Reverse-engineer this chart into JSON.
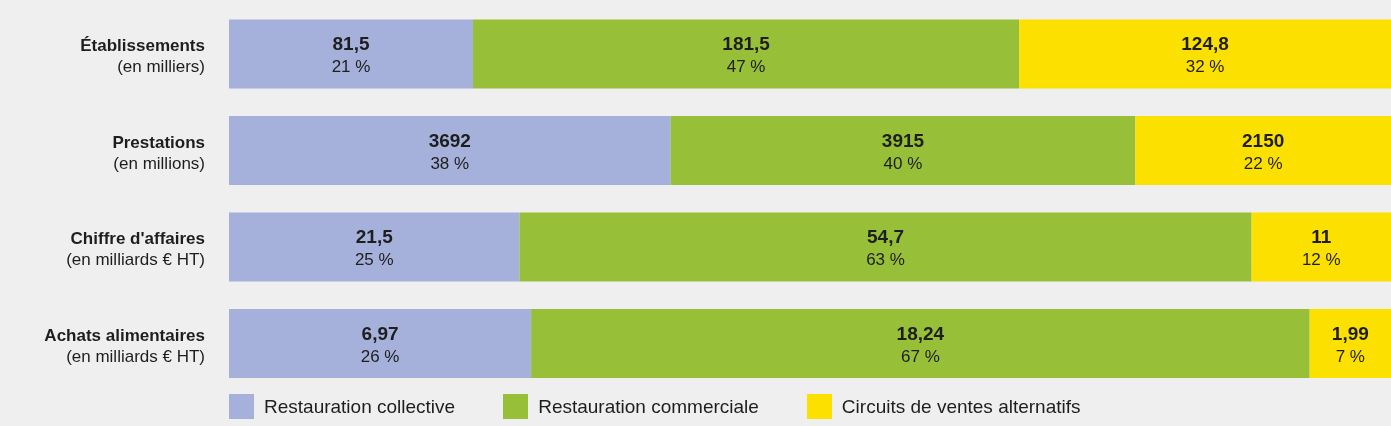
{
  "chart_data": {
    "type": "bar",
    "orientation": "horizontal",
    "stacked": true,
    "legend": "bottom left",
    "categories": [
      "Établissements\n(en milliers)",
      "Prestations\n(en millions)",
      "Chiffre d'affaires\n(en milliards € HT)",
      "Achats alimentaires\n(en milliards € HT)"
    ],
    "series": [
      {
        "name": "Restauration collective",
        "color": "#a5b1da",
        "values": [
          21,
          38,
          25,
          26
        ],
        "value_labels": [
          "81,5\n21 %",
          "3692\n38 %",
          "21,5\n25 %",
          "6,97\n26 %"
        ]
      },
      {
        "name": "Restauration commerciale",
        "color": "#97bf37",
        "values": [
          47,
          40,
          63,
          67
        ],
        "value_labels": [
          "181,5\n47 %",
          "3915\n40 %",
          "54,7\n63 %",
          "18,24\n67 %"
        ]
      },
      {
        "name": "Circuits de ventes alternatifs",
        "color": "#fce000",
        "values": [
          32,
          22,
          12,
          7
        ],
        "value_labels": [
          "124,8\n32 %",
          "2150\n22 %",
          "11\n12 %",
          "1,99\n7 %"
        ]
      }
    ]
  }
}
